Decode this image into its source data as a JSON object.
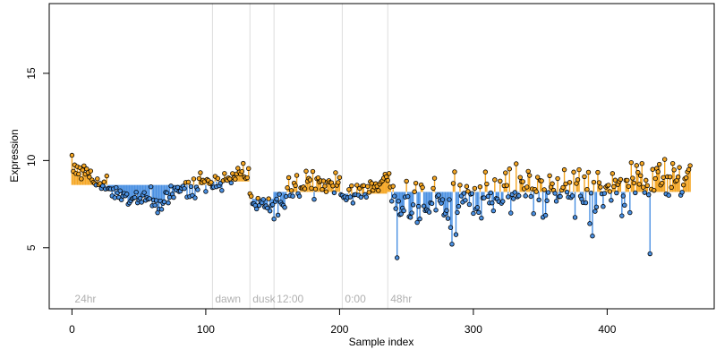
{
  "chart_data": {
    "type": "scatter",
    "xlabel": "Sample index",
    "ylabel": "Expression",
    "xlim": [
      -17,
      480
    ],
    "ylim": [
      1.5,
      19
    ],
    "x_ticks": [
      0,
      100,
      200,
      300,
      400
    ],
    "y_ticks": [
      5,
      10,
      15
    ],
    "grid": false,
    "baseline_colors": {
      "above": "#f5a623",
      "below": "#4a90e2"
    },
    "regions": [
      {
        "label": "24hr",
        "start": 0,
        "boundary": 105
      },
      {
        "label": "dawn",
        "start": 105,
        "boundary": 133
      },
      {
        "label": "dusk",
        "start": 133,
        "boundary": 151
      },
      {
        "label": "12:00",
        "start": 151,
        "boundary": 202
      },
      {
        "label": "0:00",
        "start": 202,
        "boundary": 236
      },
      {
        "label": "48hr",
        "start": 236,
        "boundary": null
      }
    ],
    "segments": [
      {
        "start": 0,
        "end": 105,
        "baseline": 8.6,
        "points": [
          [
            0,
            9.7
          ],
          [
            10,
            9.3
          ],
          [
            20,
            8.8
          ],
          [
            30,
            8.4
          ],
          [
            40,
            8.1
          ],
          [
            50,
            7.9
          ],
          [
            60,
            7.8
          ],
          [
            66,
            7.3
          ],
          [
            72,
            7.9
          ],
          [
            80,
            8.3
          ],
          [
            90,
            8.5
          ],
          [
            100,
            8.9
          ],
          [
            105,
            9.1
          ]
        ]
      },
      {
        "start": 105,
        "end": 133,
        "baseline": 8.8,
        "points": [
          [
            105,
            8.5
          ],
          [
            112,
            8.8
          ],
          [
            120,
            9.0
          ],
          [
            128,
            9.2
          ],
          [
            133,
            9.1
          ]
        ]
      },
      {
        "start": 133,
        "end": 151,
        "baseline": 7.8,
        "points": [
          [
            133,
            7.6
          ],
          [
            140,
            7.6
          ],
          [
            146,
            7.5
          ],
          [
            151,
            7.6
          ]
        ]
      },
      {
        "start": 151,
        "end": 202,
        "baseline": 8.2,
        "points": [
          [
            151,
            7.2
          ],
          [
            158,
            7.8
          ],
          [
            165,
            8.3
          ],
          [
            175,
            8.6
          ],
          [
            185,
            8.7
          ],
          [
            195,
            8.9
          ],
          [
            202,
            8.8
          ]
        ]
      },
      {
        "start": 202,
        "end": 236,
        "baseline": 8.1,
        "points": [
          [
            202,
            7.6
          ],
          [
            210,
            8.3
          ],
          [
            218,
            8.2
          ],
          [
            226,
            8.2
          ],
          [
            232,
            8.9
          ],
          [
            236,
            9.3
          ]
        ]
      },
      {
        "start": 236,
        "end": 462,
        "baseline": 8.2,
        "points": [
          [
            236,
            8.8
          ],
          [
            242,
            7.6
          ],
          [
            260,
            7.7
          ],
          [
            280,
            7.5
          ],
          [
            300,
            7.8
          ],
          [
            320,
            8.4
          ],
          [
            340,
            8.3
          ],
          [
            360,
            8.3
          ],
          [
            380,
            8.4
          ],
          [
            400,
            8.3
          ],
          [
            420,
            8.5
          ],
          [
            440,
            8.8
          ],
          [
            462,
            9.2
          ]
        ]
      }
    ]
  }
}
